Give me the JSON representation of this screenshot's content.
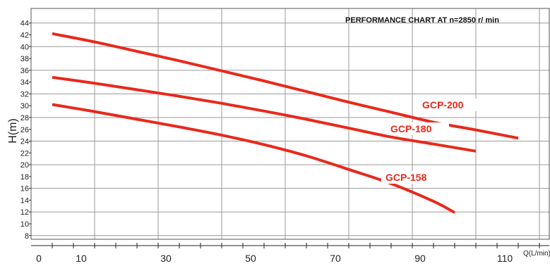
{
  "chart_data": {
    "type": "line",
    "title": "PERFORMANCE CHART AT n=2850 r/ min",
    "xlabel": "Q(L/min)",
    "ylabel": "H(m)",
    "xlim": [
      0,
      120
    ],
    "ylim": [
      6,
      44
    ],
    "x_ticks": [
      0,
      10,
      30,
      50,
      70,
      90,
      110
    ],
    "y_ticks": [
      8,
      10,
      12,
      14,
      16,
      18,
      20,
      22,
      24,
      26,
      28,
      30,
      32,
      34,
      36,
      38,
      40,
      42,
      44
    ],
    "grid": true,
    "series": [
      {
        "name": "GCP-200",
        "x": [
          0,
          10,
          20,
          30,
          40,
          50,
          60,
          70,
          80,
          90,
          100,
          110
        ],
        "values": [
          42.2,
          40.8,
          39.2,
          37.6,
          35.9,
          34.2,
          32.4,
          30.6,
          28.9,
          27.2,
          25.9,
          24.5
        ]
      },
      {
        "name": "GCP-180",
        "x": [
          0,
          10,
          20,
          30,
          40,
          50,
          60,
          70,
          80,
          90,
          100
        ],
        "values": [
          34.8,
          33.8,
          32.7,
          31.6,
          30.4,
          29.1,
          27.7,
          26.2,
          24.7,
          23.5,
          22.3
        ]
      },
      {
        "name": "GCP-158",
        "x": [
          0,
          10,
          20,
          30,
          40,
          50,
          60,
          70,
          80,
          90,
          95
        ],
        "values": [
          30.2,
          29.0,
          27.7,
          26.4,
          25.0,
          23.4,
          21.5,
          19.2,
          16.8,
          13.8,
          11.9
        ]
      }
    ],
    "colors": {
      "line": "#e8291c",
      "grid": "#9a9a9a",
      "axis": "#222222"
    }
  }
}
